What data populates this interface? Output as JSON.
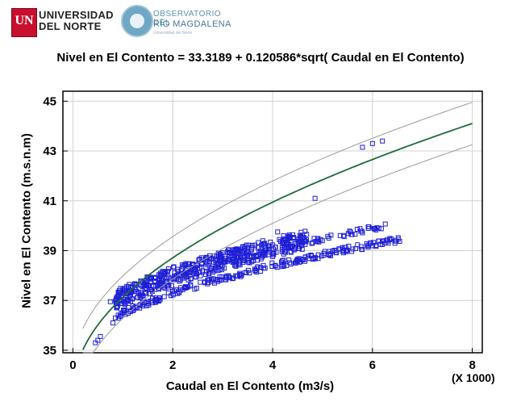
{
  "logos": {
    "university_line1": "UNIVERSIDAD",
    "university_line2": "DEL NORTE",
    "university_mark": "UN",
    "observatory_line1": "OBSERVATORIO DEL",
    "observatory_line2": "RÍO MAGDALENA",
    "observatory_line3": "Universidad del Norte"
  },
  "chart_data": {
    "type": "scatter",
    "title": "Nivel en El Contento = 33.3189 + 0.120586*sqrt( Caudal en El Contento)",
    "xlabel": "Caudal en El Contento (m3/s)",
    "ylabel": "Nivel en El Contento (m.s.n.m)",
    "x_scale_note": "(X 1000)",
    "xlim": [
      -0.2,
      8.2
    ],
    "ylim": [
      34.9,
      45.4
    ],
    "x_ticks": [
      "0",
      "2",
      "4",
      "6",
      "8"
    ],
    "x_tick_values": [
      0,
      2,
      4,
      6,
      8
    ],
    "y_ticks": [
      "35",
      "37",
      "39",
      "41",
      "43",
      "45"
    ],
    "y_tick_values": [
      35,
      37,
      39,
      41,
      43,
      45
    ],
    "grid": true,
    "fit": {
      "intercept": 33.3189,
      "coef": 0.120586,
      "x_multiplier": 1000
    },
    "limit_offset": 0.85,
    "colors": {
      "points": "#1f1fd6",
      "fit": "#1e6b3a",
      "limits": "#9a9a9a",
      "grid": "#d0d0d0"
    },
    "series": [
      {
        "name": "",
        "x_start": 0.85,
        "x_end": 4.7,
        "count": 520,
        "y_a": 35.05,
        "y_b": 0.62,
        "spread": 0.75
      },
      {
        "name": "",
        "x_start": 0.9,
        "x_end": 6.55,
        "count": 240,
        "y_a": 34.55,
        "y_b": 0.6,
        "spread": 0.25
      },
      {
        "name": "",
        "x_start": 4.4,
        "x_end": 6.3,
        "count": 50,
        "y_a": 35.05,
        "y_b": 0.62,
        "spread": 0.2
      }
    ],
    "outliers": [
      {
        "x": 0.45,
        "y": 35.3
      },
      {
        "x": 0.5,
        "y": 35.4
      },
      {
        "x": 0.55,
        "y": 35.55
      },
      {
        "x": 0.8,
        "y": 36.1
      },
      {
        "x": 0.85,
        "y": 36.3
      },
      {
        "x": 0.75,
        "y": 36.95
      },
      {
        "x": 3.5,
        "y": 38.8
      },
      {
        "x": 4.1,
        "y": 39.75
      },
      {
        "x": 4.85,
        "y": 41.1
      },
      {
        "x": 6.0,
        "y": 43.3
      },
      {
        "x": 6.2,
        "y": 43.4
      },
      {
        "x": 5.8,
        "y": 43.15
      },
      {
        "x": 1.75,
        "y": 37.7
      }
    ]
  }
}
